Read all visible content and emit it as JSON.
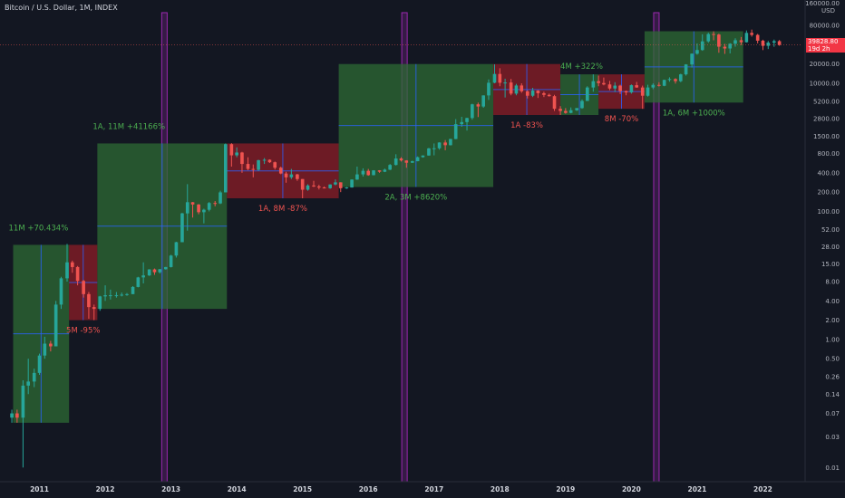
{
  "header": {
    "title": "Bitcoin / U.S. Dollar, 1M, INDEX"
  },
  "price_axis": {
    "currency": "USD",
    "ticks": [
      "160000.00",
      "80000.00",
      "40000.00",
      "20000.00",
      "10000.00",
      "5200.00",
      "2800.00",
      "1500.00",
      "800.00",
      "400.00",
      "200.00",
      "100.00",
      "52.00",
      "28.00",
      "15.00",
      "8.00",
      "4.00",
      "2.00",
      "1.00",
      "0.50",
      "0.26",
      "0.14",
      "0.07",
      "0.03",
      "0.01"
    ],
    "last_price": "39828.80",
    "countdown": "19d 2h"
  },
  "colors": {
    "background": "#131722",
    "bull": "#26a69a",
    "bear": "#ef5350",
    "green_box": "#2e6b34",
    "red_box": "#8c1d27",
    "halving": "#9c27b0",
    "mid_line": "#2962ff",
    "green_text": "#4caf50",
    "red_text": "#ef5350"
  },
  "chart_data": {
    "type": "candlestick",
    "title": "Bitcoin / U.S. Dollar, 1M, INDEX",
    "y_scale": "log",
    "ylim": [
      0.006,
      200000
    ],
    "xlim": [
      2010.4,
      2022.6
    ],
    "x_ticks": [
      "2011",
      "2012",
      "2013",
      "2014",
      "2015",
      "2016",
      "2017",
      "2018",
      "2019",
      "2020",
      "2021",
      "2022"
    ],
    "last_price": 39828.8,
    "halvings": [
      2012.9,
      2016.55,
      2020.38
    ],
    "boxes": [
      {
        "type": "rise",
        "x0": 2010.6,
        "x1": 2011.45,
        "low": 0.05,
        "high": 30,
        "label": "11M +70.434%"
      },
      {
        "type": "fall",
        "x0": 2011.45,
        "x1": 2011.88,
        "low": 2,
        "high": 30,
        "label": "5M -95%"
      },
      {
        "type": "rise",
        "x0": 2011.88,
        "x1": 2013.85,
        "low": 3,
        "high": 1150,
        "label": "1A, 11M +41166%"
      },
      {
        "type": "fall",
        "x0": 2013.85,
        "x1": 2015.55,
        "low": 160,
        "high": 1150,
        "label": "1A, 8M -87%"
      },
      {
        "type": "rise",
        "x0": 2015.55,
        "x1": 2017.9,
        "low": 240,
        "high": 20000,
        "label": "2A, 3M +8620%"
      },
      {
        "type": "fall",
        "x0": 2017.9,
        "x1": 2018.92,
        "low": 3200,
        "high": 20000,
        "label": "1A -83%"
      },
      {
        "type": "rise",
        "x0": 2018.92,
        "x1": 2019.5,
        "low": 3200,
        "high": 13800,
        "label": "4M +322%"
      },
      {
        "type": "fall",
        "x0": 2019.5,
        "x1": 2020.2,
        "low": 4000,
        "high": 13800,
        "label": "8M -70%"
      },
      {
        "type": "rise",
        "x0": 2020.2,
        "x1": 2021.7,
        "low": 5000,
        "high": 65000,
        "label": "1A, 6M +1000%"
      }
    ],
    "candles": [
      [
        2010.58,
        0.06,
        0.07,
        0.05,
        0.08
      ],
      [
        2010.66,
        0.07,
        0.06,
        0.05,
        0.08
      ],
      [
        2010.75,
        0.06,
        0.19,
        0.01,
        0.23
      ],
      [
        2010.83,
        0.19,
        0.22,
        0.14,
        0.5
      ],
      [
        2010.92,
        0.22,
        0.3,
        0.18,
        0.35
      ],
      [
        2011.0,
        0.3,
        0.56,
        0.28,
        0.6
      ],
      [
        2011.08,
        0.56,
        0.86,
        0.5,
        1.1
      ],
      [
        2011.17,
        0.86,
        0.78,
        0.65,
        0.95
      ],
      [
        2011.25,
        0.78,
        3.5,
        0.78,
        4.0
      ],
      [
        2011.33,
        3.5,
        9.0,
        3.0,
        9.5
      ],
      [
        2011.42,
        9.0,
        16.0,
        8.0,
        31.0
      ],
      [
        2011.5,
        16.0,
        13.5,
        11.0,
        17.0
      ],
      [
        2011.58,
        13.5,
        8.2,
        7.0,
        14.0
      ],
      [
        2011.67,
        8.2,
        5.1,
        4.5,
        8.5
      ],
      [
        2011.75,
        5.1,
        3.2,
        2.1,
        5.5
      ],
      [
        2011.83,
        3.2,
        3.0,
        2.0,
        3.5
      ],
      [
        2011.92,
        3.0,
        4.7,
        2.8,
        4.8
      ],
      [
        2012.0,
        4.7,
        4.9,
        4.0,
        7.0
      ],
      [
        2012.08,
        4.9,
        4.9,
        4.2,
        6.0
      ],
      [
        2012.17,
        4.9,
        4.9,
        4.5,
        5.5
      ],
      [
        2012.25,
        4.9,
        5.0,
        4.7,
        5.4
      ],
      [
        2012.33,
        5.0,
        5.1,
        4.8,
        5.3
      ],
      [
        2012.42,
        5.1,
        6.6,
        5.1,
        6.8
      ],
      [
        2012.5,
        6.6,
        9.3,
        6.5,
        9.5
      ],
      [
        2012.58,
        9.3,
        10.0,
        7.5,
        16.0
      ],
      [
        2012.67,
        10.0,
        12.4,
        9.8,
        12.5
      ],
      [
        2012.75,
        12.4,
        11.2,
        10.2,
        12.8
      ],
      [
        2012.83,
        11.2,
        12.5,
        10.7,
        12.6
      ],
      [
        2012.92,
        12.5,
        13.5,
        12.3,
        13.6
      ],
      [
        2013.0,
        13.5,
        20.4,
        13.3,
        21.0
      ],
      [
        2013.08,
        20.4,
        33.0,
        19.0,
        33.5
      ],
      [
        2013.17,
        33.0,
        93.0,
        33.0,
        95.0
      ],
      [
        2013.25,
        93.0,
        139.0,
        50.0,
        266.0
      ],
      [
        2013.33,
        139.0,
        128.0,
        80.0,
        140.0
      ],
      [
        2013.42,
        128.0,
        97.0,
        90.0,
        130.0
      ],
      [
        2013.5,
        97.0,
        106.0,
        65.0,
        110.0
      ],
      [
        2013.58,
        106.0,
        135.0,
        100.0,
        140.0
      ],
      [
        2013.67,
        135.0,
        133.0,
        120.0,
        145.0
      ],
      [
        2013.75,
        133.0,
        198.0,
        130.0,
        210.0
      ],
      [
        2013.83,
        198.0,
        1120.0,
        200.0,
        1150.0
      ],
      [
        2013.92,
        1120.0,
        750.0,
        500.0,
        1160.0
      ],
      [
        2014.0,
        750.0,
        830.0,
        700.0,
        1000.0
      ],
      [
        2014.08,
        830.0,
        550.0,
        400.0,
        850.0
      ],
      [
        2014.17,
        550.0,
        460.0,
        440.0,
        700.0
      ],
      [
        2014.25,
        460.0,
        445.0,
        340.0,
        540.0
      ],
      [
        2014.33,
        445.0,
        630.0,
        430.0,
        640.0
      ],
      [
        2014.42,
        630.0,
        640.0,
        550.0,
        680.0
      ],
      [
        2014.5,
        640.0,
        585.0,
        570.0,
        650.0
      ],
      [
        2014.58,
        585.0,
        480.0,
        450.0,
        600.0
      ],
      [
        2014.67,
        480.0,
        390.0,
        380.0,
        500.0
      ],
      [
        2014.75,
        390.0,
        340.0,
        280.0,
        415.0
      ],
      [
        2014.83,
        340.0,
        378.0,
        320.0,
        460.0
      ],
      [
        2014.92,
        378.0,
        320.0,
        300.0,
        385.0
      ],
      [
        2015.0,
        320.0,
        218.0,
        160.0,
        320.0
      ],
      [
        2015.08,
        218.0,
        254.0,
        210.0,
        265.0
      ],
      [
        2015.17,
        254.0,
        245.0,
        240.0,
        300.0
      ],
      [
        2015.25,
        245.0,
        236.0,
        220.0,
        260.0
      ],
      [
        2015.33,
        236.0,
        230.0,
        228.0,
        245.0
      ],
      [
        2015.42,
        230.0,
        263.0,
        225.0,
        265.0
      ],
      [
        2015.5,
        263.0,
        284.0,
        255.0,
        315.0
      ],
      [
        2015.58,
        284.0,
        230.0,
        200.0,
        285.0
      ],
      [
        2015.67,
        230.0,
        236.0,
        225.0,
        240.0
      ],
      [
        2015.75,
        236.0,
        314.0,
        235.0,
        316.0
      ],
      [
        2015.83,
        314.0,
        378.0,
        310.0,
        500.0
      ],
      [
        2015.92,
        378.0,
        430.0,
        350.0,
        470.0
      ],
      [
        2016.0,
        430.0,
        368.0,
        360.0,
        460.0
      ],
      [
        2016.08,
        368.0,
        437.0,
        365.0,
        440.0
      ],
      [
        2016.17,
        437.0,
        416.0,
        400.0,
        440.0
      ],
      [
        2016.25,
        416.0,
        448.0,
        410.0,
        465.0
      ],
      [
        2016.33,
        448.0,
        531.0,
        440.0,
        550.0
      ],
      [
        2016.42,
        531.0,
        670.0,
        520.0,
        780.0
      ],
      [
        2016.5,
        670.0,
        624.0,
        600.0,
        700.0
      ],
      [
        2016.58,
        624.0,
        575.0,
        480.0,
        630.0
      ],
      [
        2016.67,
        575.0,
        608.0,
        570.0,
        620.0
      ],
      [
        2016.75,
        608.0,
        701.0,
        605.0,
        720.0
      ],
      [
        2016.83,
        701.0,
        745.0,
        690.0,
        750.0
      ],
      [
        2016.92,
        745.0,
        963.0,
        740.0,
        980.0
      ],
      [
        2017.0,
        963.0,
        967.0,
        750.0,
        1150.0
      ],
      [
        2017.08,
        967.0,
        1190.0,
        920.0,
        1200.0
      ],
      [
        2017.17,
        1190.0,
        1080.0,
        900.0,
        1300.0
      ],
      [
        2017.25,
        1080.0,
        1350.0,
        1070.0,
        1360.0
      ],
      [
        2017.33,
        1350.0,
        2300.0,
        1340.0,
        2760.0
      ],
      [
        2017.42,
        2300.0,
        2480.0,
        2100.0,
        3000.0
      ],
      [
        2017.5,
        2480.0,
        2870.0,
        1830.0,
        2900.0
      ],
      [
        2017.58,
        2870.0,
        4700.0,
        2700.0,
        4800.0
      ],
      [
        2017.67,
        4700.0,
        4340.0,
        2970.0,
        5000.0
      ],
      [
        2017.75,
        4340.0,
        6470.0,
        4150.0,
        6500.0
      ],
      [
        2017.83,
        6470.0,
        10200.0,
        5500.0,
        11500.0
      ],
      [
        2017.92,
        10200.0,
        14000.0,
        10000.0,
        19800.0
      ],
      [
        2018.0,
        14000.0,
        10200.0,
        9000.0,
        17200.0
      ],
      [
        2018.08,
        10200.0,
        10300.0,
        6000.0,
        11800.0
      ],
      [
        2018.17,
        10300.0,
        6900.0,
        6500.0,
        11700.0
      ],
      [
        2018.25,
        6900.0,
        9250.0,
        6500.0,
        9800.0
      ],
      [
        2018.33,
        9250.0,
        7500.0,
        7100.0,
        10000.0
      ],
      [
        2018.42,
        7500.0,
        6400.0,
        5800.0,
        7800.0
      ],
      [
        2018.5,
        6400.0,
        7700.0,
        6100.0,
        8500.0
      ],
      [
        2018.58,
        7700.0,
        7000.0,
        5900.0,
        7800.0
      ],
      [
        2018.67,
        7000.0,
        6600.0,
        6100.0,
        7400.0
      ],
      [
        2018.75,
        6600.0,
        6300.0,
        6200.0,
        6900.0
      ],
      [
        2018.83,
        6300.0,
        4000.0,
        3700.0,
        6600.0
      ],
      [
        2018.92,
        4000.0,
        3700.0,
        3200.0,
        4400.0
      ],
      [
        2019.0,
        3700.0,
        3450.0,
        3350.0,
        4100.0
      ],
      [
        2019.08,
        3450.0,
        3800.0,
        3400.0,
        4200.0
      ],
      [
        2019.17,
        3800.0,
        4100.0,
        3700.0,
        4100.0
      ],
      [
        2019.25,
        4100.0,
        5300.0,
        4000.0,
        5600.0
      ],
      [
        2019.33,
        5300.0,
        8600.0,
        5300.0,
        9000.0
      ],
      [
        2019.42,
        8600.0,
        10800.0,
        7400.0,
        13800.0
      ],
      [
        2019.5,
        10800.0,
        10100.0,
        9000.0,
        13200.0
      ],
      [
        2019.58,
        10100.0,
        9600.0,
        9300.0,
        12300.0
      ],
      [
        2019.67,
        9600.0,
        8300.0,
        7800.0,
        10900.0
      ],
      [
        2019.75,
        8300.0,
        9200.0,
        7300.0,
        10400.0
      ],
      [
        2019.83,
        9200.0,
        7550.0,
        6800.0,
        9500.0
      ],
      [
        2019.92,
        7550.0,
        7200.0,
        6500.0,
        7700.0
      ],
      [
        2020.0,
        7200.0,
        9350.0,
        6900.0,
        9600.0
      ],
      [
        2020.08,
        9350.0,
        8600.0,
        8500.0,
        10500.0
      ],
      [
        2020.17,
        8600.0,
        6400.0,
        4000.0,
        9200.0
      ],
      [
        2020.25,
        6400.0,
        8600.0,
        6200.0,
        9500.0
      ],
      [
        2020.33,
        8600.0,
        9450.0,
        8100.0,
        10000.0
      ],
      [
        2020.42,
        9450.0,
        9150.0,
        8900.0,
        10400.0
      ],
      [
        2020.5,
        9150.0,
        11300.0,
        9000.0,
        11400.0
      ],
      [
        2020.58,
        11300.0,
        11650.0,
        10600.0,
        12400.0
      ],
      [
        2020.67,
        11650.0,
        10800.0,
        9900.0,
        12000.0
      ],
      [
        2020.75,
        10800.0,
        13800.0,
        10400.0,
        14100.0
      ],
      [
        2020.83,
        13800.0,
        19700.0,
        13200.0,
        19900.0
      ],
      [
        2020.92,
        19700.0,
        29000.0,
        17600.0,
        29300.0
      ],
      [
        2021.0,
        29000.0,
        33100.0,
        28000.0,
        41900.0
      ],
      [
        2021.08,
        33100.0,
        45200.0,
        32200.0,
        58300.0
      ],
      [
        2021.17,
        45200.0,
        58800.0,
        43000.0,
        61700.0
      ],
      [
        2021.25,
        58800.0,
        57700.0,
        47000.0,
        64800.0
      ],
      [
        2021.33,
        57700.0,
        37300.0,
        30000.0,
        59500.0
      ],
      [
        2021.42,
        37300.0,
        35000.0,
        28800.0,
        41300.0
      ],
      [
        2021.5,
        35000.0,
        41500.0,
        29300.0,
        42300.0
      ],
      [
        2021.58,
        41500.0,
        47100.0,
        37300.0,
        50500.0
      ],
      [
        2021.67,
        47100.0,
        43800.0,
        39600.0,
        52900.0
      ],
      [
        2021.75,
        43800.0,
        61300.0,
        43300.0,
        66900.0
      ],
      [
        2021.83,
        61300.0,
        57000.0,
        53600.0,
        69000.0
      ],
      [
        2021.92,
        57000.0,
        46300.0,
        42000.0,
        59000.0
      ],
      [
        2022.0,
        46300.0,
        38500.0,
        33000.0,
        47900.0
      ],
      [
        2022.08,
        38500.0,
        43200.0,
        34300.0,
        45800.0
      ],
      [
        2022.17,
        43200.0,
        45500.0,
        37200.0,
        48200.0
      ],
      [
        2022.25,
        45500.0,
        39828.8,
        38600.0,
        47400.0
      ]
    ]
  }
}
